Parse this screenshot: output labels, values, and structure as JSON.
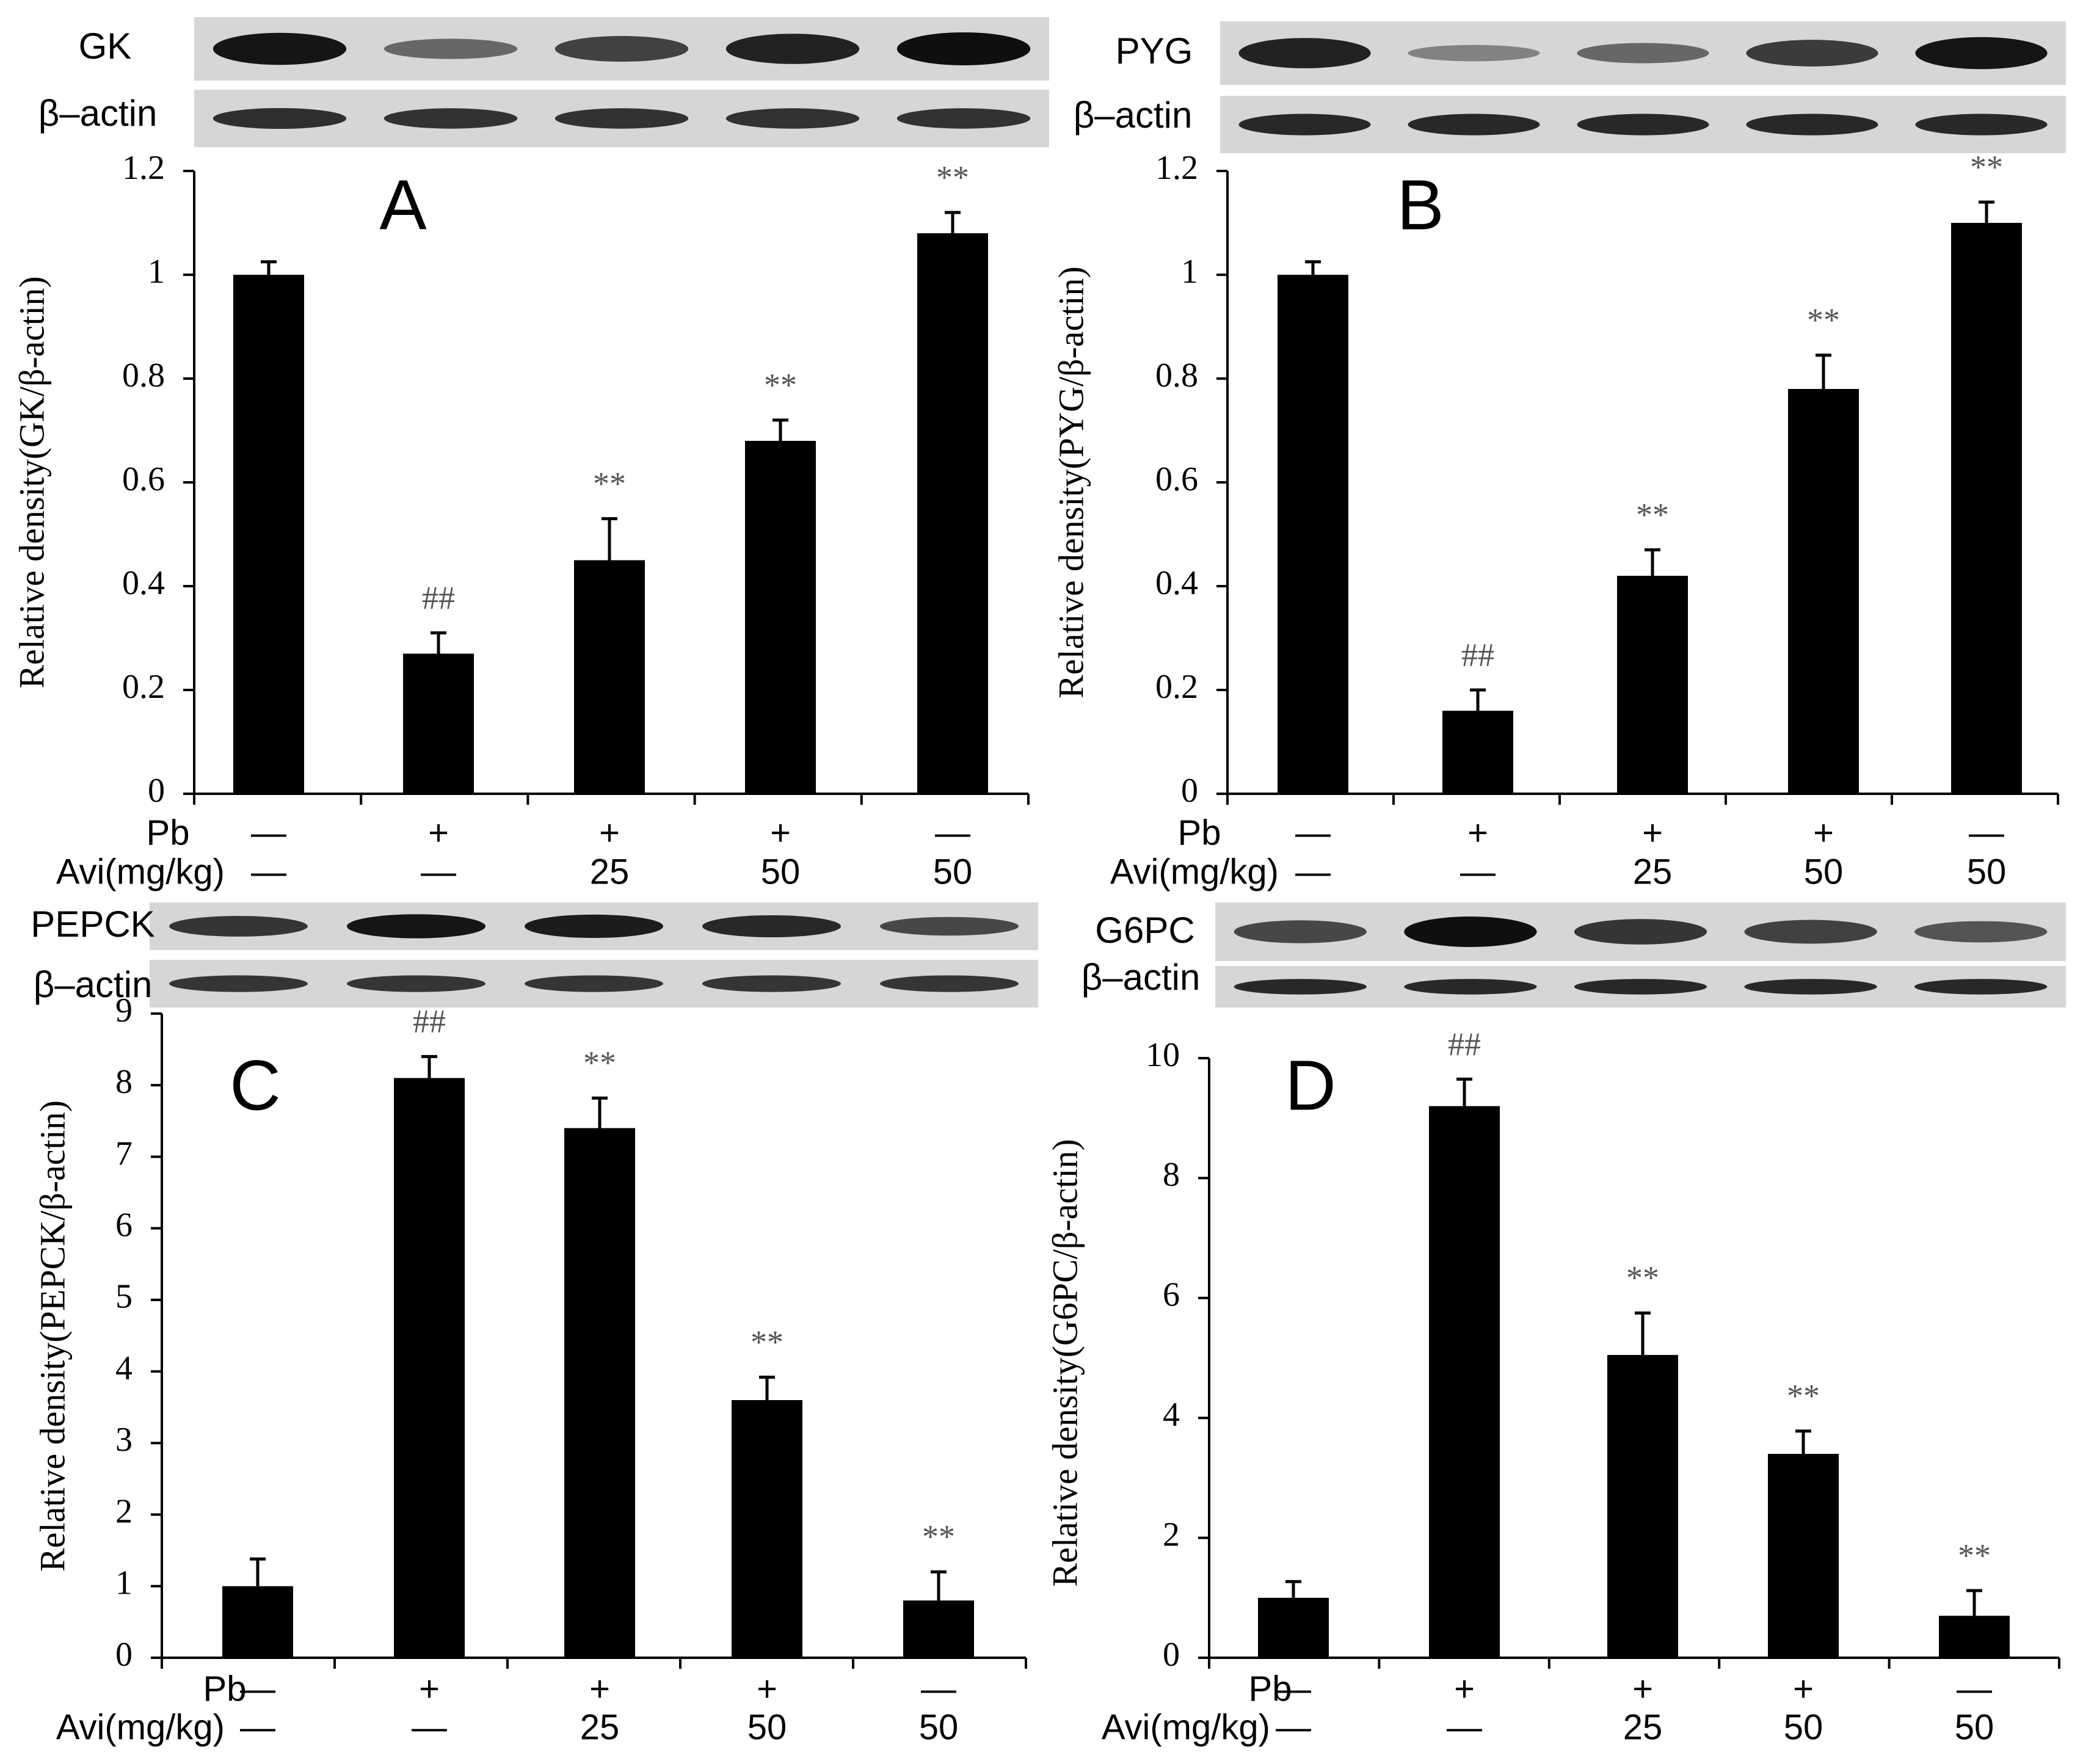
{
  "figure": {
    "groups": {
      "pb_label": "Pb",
      "avi_label": "Avi(mg/kg)",
      "pb": [
        "—",
        "+",
        "+",
        "+",
        "—"
      ],
      "avi": [
        "—",
        "—",
        "25",
        "50",
        "50"
      ]
    },
    "blots": {
      "actin_label": "β–actin"
    }
  },
  "chart_data": [
    {
      "type": "bar",
      "panel": "A",
      "protein": "GK",
      "ylabel": "Relative density(GK/β-actin)",
      "ylim": [
        0,
        1.2
      ],
      "yticks": [
        0,
        0.2,
        0.4,
        0.6,
        0.8,
        1,
        1.2
      ],
      "ytick_labels": [
        "0",
        "0.2",
        "0.4",
        "0.6",
        "0.8",
        "1",
        "1.2"
      ],
      "values": [
        1.0,
        0.27,
        0.45,
        0.68,
        1.08
      ],
      "errors": [
        0.025,
        0.04,
        0.08,
        0.04,
        0.04
      ],
      "annotations": [
        "",
        "##",
        "**",
        "**",
        "**"
      ],
      "blot_target": [
        0.95,
        0.3,
        0.6,
        0.85,
        1.0
      ],
      "blot_actin": [
        0.75,
        0.72,
        0.72,
        0.72,
        0.72
      ]
    },
    {
      "type": "bar",
      "panel": "B",
      "protein": "PYG",
      "ylabel": "Relative density(PYG/β-actin)",
      "ylim": [
        0,
        1.2
      ],
      "yticks": [
        0,
        0.2,
        0.4,
        0.6,
        0.8,
        1,
        1.2
      ],
      "ytick_labels": [
        "0",
        "0.2",
        "0.4",
        "0.6",
        "0.8",
        "1",
        "1.2"
      ],
      "values": [
        1.0,
        0.16,
        0.42,
        0.78,
        1.1
      ],
      "errors": [
        0.025,
        0.04,
        0.05,
        0.065,
        0.04
      ],
      "annotations": [
        "",
        "##",
        "**",
        "**",
        "**"
      ],
      "blot_target": [
        0.85,
        0.08,
        0.3,
        0.65,
        0.95
      ],
      "blot_actin": [
        0.8,
        0.8,
        0.8,
        0.8,
        0.8
      ]
    },
    {
      "type": "bar",
      "panel": "C",
      "protein": "PEPCK",
      "ylabel": "Relative density(PEPCK/β-actin)",
      "ylim": [
        0,
        9
      ],
      "yticks": [
        0,
        1,
        2,
        3,
        4,
        5,
        6,
        7,
        8,
        9
      ],
      "ytick_labels": [
        "0",
        "1",
        "2",
        "3",
        "4",
        "5",
        "6",
        "7",
        "8",
        "9"
      ],
      "values": [
        1.0,
        8.1,
        7.4,
        3.6,
        0.8
      ],
      "errors": [
        0.38,
        0.3,
        0.42,
        0.32,
        0.4
      ],
      "annotations": [
        "",
        "##",
        "**",
        "**",
        "**"
      ],
      "blot_target": [
        0.7,
        0.95,
        0.9,
        0.8,
        0.55
      ],
      "blot_actin": [
        0.7,
        0.7,
        0.7,
        0.7,
        0.7
      ]
    },
    {
      "type": "bar",
      "panel": "D",
      "protein": "G6PC",
      "ylabel": "Relative density(G6PC/β-actin)",
      "ylim": [
        0,
        10
      ],
      "yticks": [
        0,
        2,
        4,
        6,
        8,
        10
      ],
      "ytick_labels": [
        "0",
        "2",
        "4",
        "6",
        "8",
        "10"
      ],
      "values": [
        1.0,
        9.2,
        5.05,
        3.4,
        0.7
      ],
      "errors": [
        0.27,
        0.45,
        0.7,
        0.38,
        0.42
      ],
      "annotations": [
        "",
        "##",
        "**",
        "**",
        "**"
      ],
      "blot_target": [
        0.55,
        1.0,
        0.7,
        0.6,
        0.45
      ],
      "blot_actin": [
        0.8,
        0.8,
        0.8,
        0.8,
        0.8
      ]
    }
  ]
}
